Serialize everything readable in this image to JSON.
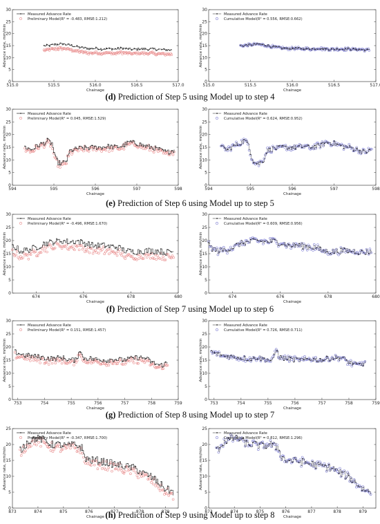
{
  "colors": {
    "measured": "#222222",
    "preliminary": "#e88a8a",
    "cumulative": "#7b7bd0",
    "frame": "#444444"
  },
  "chart_data": [
    {
      "id": "d_left",
      "panel": "d",
      "type": "line",
      "x_range": [
        515.0,
        517.0
      ],
      "xticks": [
        515.0,
        515.5,
        516.0,
        516.5,
        517.0
      ],
      "tick_format": 1,
      "ylim": [
        0,
        30
      ],
      "yticks": [
        0,
        5,
        10,
        15,
        20,
        25,
        30
      ],
      "xlabel": "Chainage",
      "ylabel": "Advance rate, mm/min",
      "legend": [
        "Measured Advance Rate",
        "Preliminary Model(R² = -0.483, RMSE:1.212)"
      ],
      "model": "preliminary",
      "data_x_range": [
        515.38,
        516.92
      ],
      "measured_profile": [
        [
          0,
          14.9
        ],
        [
          0.05,
          15.1
        ],
        [
          0.1,
          15.6
        ],
        [
          0.15,
          15.7
        ],
        [
          0.2,
          15.2
        ],
        [
          0.25,
          14.6
        ],
        [
          0.3,
          14.1
        ],
        [
          0.35,
          13.7
        ],
        [
          0.4,
          13.9
        ],
        [
          0.45,
          13.6
        ],
        [
          0.5,
          13.8
        ],
        [
          0.55,
          13.5
        ],
        [
          0.6,
          13.9
        ],
        [
          0.65,
          13.6
        ],
        [
          0.7,
          13.4
        ],
        [
          0.75,
          13.7
        ],
        [
          0.8,
          13.5
        ],
        [
          0.85,
          13.6
        ],
        [
          0.9,
          13.4
        ],
        [
          0.95,
          13.3
        ],
        [
          1,
          13.2
        ]
      ],
      "noise": 0.5,
      "model_offset": -1.8
    },
    {
      "id": "d_right",
      "panel": "d",
      "type": "line",
      "x_range": [
        515.0,
        517.0
      ],
      "xticks": [
        515.0,
        515.5,
        516.0,
        516.5,
        517.0
      ],
      "tick_format": 1,
      "ylim": [
        0,
        30
      ],
      "yticks": [
        0,
        5,
        10,
        15,
        20,
        25,
        30
      ],
      "xlabel": "Chainage",
      "ylabel": "Advance rate, mm/min",
      "legend": [
        "Measured Advance Rate",
        "Cumulative Model(R² = 0.556, RMSE:0.662)"
      ],
      "model": "cumulative",
      "data_x_range": [
        515.38,
        516.92
      ],
      "measured_profile": [
        [
          0,
          15.0
        ],
        [
          0.05,
          15.1
        ],
        [
          0.1,
          15.4
        ],
        [
          0.15,
          15.5
        ],
        [
          0.2,
          15.1
        ],
        [
          0.25,
          14.5
        ],
        [
          0.3,
          14.1
        ],
        [
          0.35,
          13.8
        ],
        [
          0.4,
          13.9
        ],
        [
          0.45,
          13.7
        ],
        [
          0.5,
          13.8
        ],
        [
          0.55,
          13.6
        ],
        [
          0.6,
          13.9
        ],
        [
          0.65,
          13.6
        ],
        [
          0.7,
          13.5
        ],
        [
          0.75,
          13.6
        ],
        [
          0.8,
          13.5
        ],
        [
          0.85,
          13.6
        ],
        [
          0.9,
          13.4
        ],
        [
          0.95,
          13.3
        ],
        [
          1,
          13.2
        ]
      ],
      "noise": 0.5,
      "model_offset": 0.0
    },
    {
      "id": "e_left",
      "panel": "e",
      "type": "line",
      "x_range": [
        594,
        598
      ],
      "xticks": [
        594,
        595,
        596,
        597,
        598
      ],
      "tick_format": 0,
      "ylim": [
        0,
        30
      ],
      "yticks": [
        0,
        5,
        10,
        15,
        20,
        25,
        30
      ],
      "xlabel": "Chainage",
      "ylabel": "Advance rate, mm/min",
      "legend": [
        "Measured Advance Rate",
        "Preliminary Model(R² = 0.045, RMSE:1.529)"
      ],
      "model": "preliminary",
      "data_x_range": [
        594.3,
        597.9
      ],
      "measured_profile": [
        [
          0,
          15
        ],
        [
          0.04,
          14
        ],
        [
          0.08,
          15.5
        ],
        [
          0.12,
          16.5
        ],
        [
          0.15,
          17.5
        ],
        [
          0.18,
          16.5
        ],
        [
          0.2,
          11
        ],
        [
          0.22,
          9
        ],
        [
          0.25,
          8.5
        ],
        [
          0.28,
          10
        ],
        [
          0.3,
          13.5
        ],
        [
          0.35,
          14.5
        ],
        [
          0.4,
          14.8
        ],
        [
          0.5,
          15
        ],
        [
          0.55,
          15.3
        ],
        [
          0.6,
          15
        ],
        [
          0.65,
          15.5
        ],
        [
          0.7,
          17
        ],
        [
          0.75,
          16.5
        ],
        [
          0.8,
          15.5
        ],
        [
          0.85,
          15
        ],
        [
          0.9,
          14
        ],
        [
          0.95,
          13
        ],
        [
          1,
          14
        ]
      ],
      "noise": 1.0,
      "model_offset": -0.6
    },
    {
      "id": "e_right",
      "panel": "e",
      "type": "line",
      "x_range": [
        594,
        598
      ],
      "xticks": [
        594,
        595,
        596,
        597,
        598
      ],
      "tick_format": 0,
      "ylim": [
        0,
        30
      ],
      "yticks": [
        0,
        5,
        10,
        15,
        20,
        25,
        30
      ],
      "xlabel": "Chainage",
      "ylabel": "Advance rate, mm/min",
      "legend": [
        "Measured Advance Rate",
        "Cumulative Model(R² = 0.624, RMSE:0.952)"
      ],
      "model": "cumulative",
      "data_x_range": [
        594.3,
        597.9
      ],
      "measured_profile": [
        [
          0,
          15
        ],
        [
          0.04,
          14
        ],
        [
          0.08,
          15.5
        ],
        [
          0.12,
          16.5
        ],
        [
          0.15,
          17.5
        ],
        [
          0.18,
          16.5
        ],
        [
          0.2,
          11
        ],
        [
          0.22,
          9
        ],
        [
          0.25,
          8.5
        ],
        [
          0.28,
          10
        ],
        [
          0.3,
          13.5
        ],
        [
          0.35,
          14.5
        ],
        [
          0.4,
          14.8
        ],
        [
          0.5,
          15
        ],
        [
          0.55,
          15.3
        ],
        [
          0.6,
          15
        ],
        [
          0.65,
          15.5
        ],
        [
          0.7,
          17
        ],
        [
          0.75,
          16.5
        ],
        [
          0.8,
          15.5
        ],
        [
          0.85,
          15
        ],
        [
          0.9,
          14
        ],
        [
          0.95,
          13
        ],
        [
          1,
          14
        ]
      ],
      "noise": 1.0,
      "model_offset": 0.0
    },
    {
      "id": "f_left",
      "panel": "f",
      "type": "line",
      "x_range": [
        673,
        680
      ],
      "xticks": [
        674,
        676,
        678,
        680
      ],
      "tick_format": 0,
      "ylim": [
        0,
        30
      ],
      "yticks": [
        0,
        5,
        10,
        15,
        20,
        25,
        30
      ],
      "xlabel": "Chainage",
      "ylabel": "Advance rate, mm/min",
      "legend": [
        "Measured Advance Rate",
        "Preliminary Model(R² = -0.496, RMSE:1.670)"
      ],
      "model": "preliminary",
      "data_x_range": [
        673.0,
        679.8
      ],
      "measured_profile": [
        [
          0,
          18
        ],
        [
          0.05,
          16
        ],
        [
          0.1,
          16.5
        ],
        [
          0.15,
          17.5
        ],
        [
          0.2,
          19
        ],
        [
          0.25,
          19.5
        ],
        [
          0.3,
          20
        ],
        [
          0.35,
          19.5
        ],
        [
          0.4,
          19.8
        ],
        [
          0.45,
          19
        ],
        [
          0.5,
          18
        ],
        [
          0.55,
          18.2
        ],
        [
          0.6,
          17.8
        ],
        [
          0.65,
          17.5
        ],
        [
          0.7,
          16
        ],
        [
          0.75,
          15.8
        ],
        [
          0.8,
          16
        ],
        [
          0.85,
          16.2
        ],
        [
          0.9,
          16
        ],
        [
          0.95,
          15.5
        ],
        [
          1,
          16
        ]
      ],
      "noise": 1.2,
      "model_offset": -2.0
    },
    {
      "id": "f_right",
      "panel": "f",
      "type": "line",
      "x_range": [
        673,
        680
      ],
      "xticks": [
        674,
        676,
        678,
        680
      ],
      "tick_format": 0,
      "ylim": [
        0,
        30
      ],
      "yticks": [
        0,
        5,
        10,
        15,
        20,
        25,
        30
      ],
      "xlabel": "Chainage",
      "ylabel": "Advance rate, mm/min",
      "legend": [
        "Measured Advance Rate",
        "Cumulative Model(R² = 0.609, RMSE:0.956)"
      ],
      "model": "cumulative",
      "data_x_range": [
        673.0,
        679.8
      ],
      "measured_profile": [
        [
          0,
          18
        ],
        [
          0.05,
          16
        ],
        [
          0.1,
          16.5
        ],
        [
          0.15,
          17.5
        ],
        [
          0.2,
          19
        ],
        [
          0.25,
          19.5
        ],
        [
          0.3,
          20
        ],
        [
          0.35,
          19.5
        ],
        [
          0.4,
          19.8
        ],
        [
          0.45,
          19
        ],
        [
          0.5,
          18
        ],
        [
          0.55,
          18.2
        ],
        [
          0.6,
          17.8
        ],
        [
          0.65,
          17.5
        ],
        [
          0.7,
          16
        ],
        [
          0.75,
          15.8
        ],
        [
          0.8,
          16
        ],
        [
          0.85,
          16.2
        ],
        [
          0.9,
          16
        ],
        [
          0.95,
          15.5
        ],
        [
          1,
          16
        ]
      ],
      "noise": 1.2,
      "model_offset": 0.0
    },
    {
      "id": "g_left",
      "panel": "g",
      "type": "line",
      "x_range": [
        752.8,
        759
      ],
      "xticks": [
        753,
        754,
        755,
        756,
        757,
        758,
        759
      ],
      "tick_format": 0,
      "ylim": [
        0,
        30
      ],
      "yticks": [
        0,
        5,
        10,
        15,
        20,
        25,
        30
      ],
      "xlabel": "Chainage",
      "ylabel": "Advance rate, mm/min",
      "legend": [
        "Measured Advance Rate",
        "Preliminary Model(R² = 0.151, RMSE:1.457)"
      ],
      "model": "preliminary",
      "data_x_range": [
        752.9,
        758.6
      ],
      "measured_profile": [
        [
          0,
          18
        ],
        [
          0.05,
          17
        ],
        [
          0.1,
          16.5
        ],
        [
          0.15,
          16.2
        ],
        [
          0.2,
          15.8
        ],
        [
          0.25,
          15.5
        ],
        [
          0.3,
          16
        ],
        [
          0.35,
          15.2
        ],
        [
          0.4,
          15
        ],
        [
          0.42,
          19.5
        ],
        [
          0.44,
          16
        ],
        [
          0.5,
          15.5
        ],
        [
          0.55,
          15.2
        ],
        [
          0.6,
          15
        ],
        [
          0.65,
          15.5
        ],
        [
          0.7,
          15
        ],
        [
          0.75,
          15.5
        ],
        [
          0.8,
          16
        ],
        [
          0.85,
          15.8
        ],
        [
          0.9,
          14
        ],
        [
          0.95,
          13
        ],
        [
          1,
          14
        ]
      ],
      "noise": 1.0,
      "model_offset": -1.0
    },
    {
      "id": "g_right",
      "panel": "g",
      "type": "line",
      "x_range": [
        752.8,
        759
      ],
      "xticks": [
        753,
        754,
        755,
        756,
        757,
        758,
        759
      ],
      "tick_format": 0,
      "ylim": [
        0,
        30
      ],
      "yticks": [
        0,
        5,
        10,
        15,
        20,
        25,
        30
      ],
      "xlabel": "Chainage",
      "ylabel": "Advance rate, mm/min",
      "legend": [
        "Measured Advance Rate",
        "Cumulative Model(R² = 0.726, RMSE:0.711)"
      ],
      "model": "cumulative",
      "data_x_range": [
        752.9,
        758.6
      ],
      "measured_profile": [
        [
          0,
          18
        ],
        [
          0.05,
          17
        ],
        [
          0.1,
          16.5
        ],
        [
          0.15,
          16.2
        ],
        [
          0.2,
          15.8
        ],
        [
          0.25,
          15.5
        ],
        [
          0.3,
          16
        ],
        [
          0.35,
          15.2
        ],
        [
          0.4,
          15
        ],
        [
          0.42,
          19.5
        ],
        [
          0.44,
          16
        ],
        [
          0.5,
          15.5
        ],
        [
          0.55,
          15.2
        ],
        [
          0.6,
          15
        ],
        [
          0.65,
          15.5
        ],
        [
          0.7,
          15
        ],
        [
          0.75,
          15.5
        ],
        [
          0.8,
          16
        ],
        [
          0.85,
          15.8
        ],
        [
          0.9,
          14
        ],
        [
          0.95,
          13
        ],
        [
          1,
          14
        ]
      ],
      "noise": 1.0,
      "model_offset": 0.0
    },
    {
      "id": "h_left",
      "panel": "h",
      "type": "line",
      "x_range": [
        873,
        879.5
      ],
      "xticks": [
        873,
        874,
        875,
        876,
        877,
        878,
        879
      ],
      "tick_format": 0,
      "ylim": [
        0,
        25
      ],
      "yticks": [
        0,
        5,
        10,
        15,
        20,
        25
      ],
      "xlabel": "Chainage",
      "ylabel": "Advance rate, mm/min",
      "legend": [
        "Measured Advance Rate",
        "Preliminary Model(R² = -0.347, RMSE:1.700)"
      ],
      "model": "preliminary",
      "data_x_range": [
        873.3,
        879.3
      ],
      "measured_profile": [
        [
          0,
          18
        ],
        [
          0.05,
          21
        ],
        [
          0.1,
          22
        ],
        [
          0.15,
          21.5
        ],
        [
          0.2,
          20
        ],
        [
          0.25,
          20
        ],
        [
          0.3,
          19.5
        ],
        [
          0.35,
          20
        ],
        [
          0.4,
          19
        ],
        [
          0.42,
          16
        ],
        [
          0.45,
          15
        ],
        [
          0.5,
          15
        ],
        [
          0.55,
          14.5
        ],
        [
          0.6,
          14
        ],
        [
          0.65,
          13.5
        ],
        [
          0.7,
          13
        ],
        [
          0.75,
          12.5
        ],
        [
          0.8,
          11
        ],
        [
          0.85,
          10
        ],
        [
          0.9,
          8
        ],
        [
          0.95,
          6
        ],
        [
          1,
          5
        ]
      ],
      "noise": 1.2,
      "model_offset": -1.0
    },
    {
      "id": "h_right",
      "panel": "h",
      "type": "line",
      "x_range": [
        873,
        879.5
      ],
      "xticks": [
        873,
        874,
        875,
        876,
        877,
        878,
        879
      ],
      "tick_format": 0,
      "ylim": [
        0,
        25
      ],
      "yticks": [
        0,
        5,
        10,
        15,
        20,
        25
      ],
      "xlabel": "Chainage",
      "ylabel": "Advance rate, mm/min",
      "legend": [
        "Measured Advance Rate",
        "Cumulative Model(R² = 0.812, RMSE:1.296)"
      ],
      "model": "cumulative",
      "data_x_range": [
        873.3,
        879.3
      ],
      "measured_profile": [
        [
          0,
          18
        ],
        [
          0.05,
          21
        ],
        [
          0.1,
          22
        ],
        [
          0.15,
          21.5
        ],
        [
          0.2,
          20
        ],
        [
          0.25,
          20
        ],
        [
          0.3,
          19.5
        ],
        [
          0.35,
          20
        ],
        [
          0.4,
          19
        ],
        [
          0.42,
          16
        ],
        [
          0.45,
          15
        ],
        [
          0.5,
          15
        ],
        [
          0.55,
          14.5
        ],
        [
          0.6,
          14
        ],
        [
          0.65,
          13.5
        ],
        [
          0.7,
          13
        ],
        [
          0.75,
          12.5
        ],
        [
          0.8,
          11
        ],
        [
          0.85,
          10
        ],
        [
          0.9,
          8
        ],
        [
          0.95,
          6
        ],
        [
          1,
          5
        ]
      ],
      "noise": 1.2,
      "model_offset": 0.0
    }
  ],
  "captions": [
    {
      "letter": "(d)",
      "text": " Prediction of Step 5 using Model up to step 4"
    },
    {
      "letter": "(e)",
      "text": " Prediction of Step 6 using Model up to step 5"
    },
    {
      "letter": "(f)",
      "text": " Prediction of Step 7 using Model up to step 6"
    },
    {
      "letter": "(g)",
      "text": " Prediction of Step 8 using Model up to step 7"
    },
    {
      "letter": "(h)",
      "text": " Prediction of Step 9 using Model up to step 8"
    }
  ]
}
